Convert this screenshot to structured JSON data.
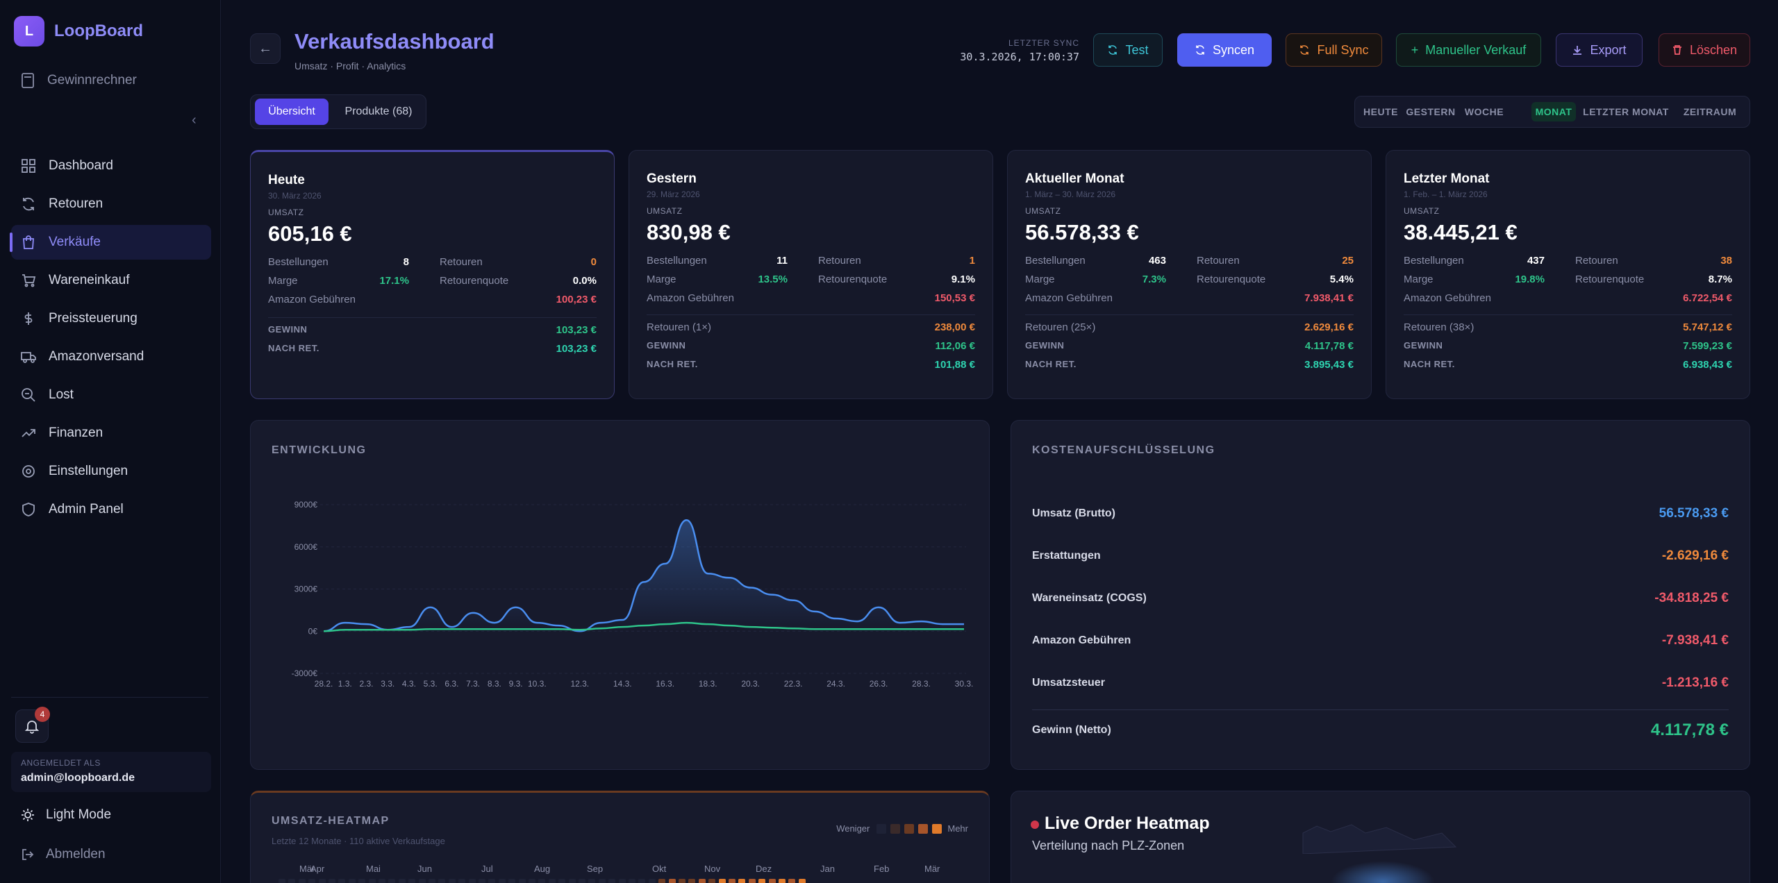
{
  "app": {
    "name": "LoopBoard",
    "logo_letter": "L"
  },
  "sidebar": {
    "top_item": "Gewinnrechner",
    "collapse_icon": "chevron-left-icon",
    "items": [
      {
        "label": "Dashboard",
        "icon": "grid-icon"
      },
      {
        "label": "Retouren",
        "icon": "refresh-icon"
      },
      {
        "label": "Verkäufe",
        "icon": "shopping-bag-icon",
        "active": true
      },
      {
        "label": "Wareneinkauf",
        "icon": "cart-icon"
      },
      {
        "label": "Preissteuerung",
        "icon": "dollar-icon"
      },
      {
        "label": "Amazonversand",
        "icon": "truck-icon"
      },
      {
        "label": "Lost",
        "icon": "search-minus-icon"
      },
      {
        "label": "Finanzen",
        "icon": "trend-icon"
      },
      {
        "label": "Einstellungen",
        "icon": "gear-icon"
      },
      {
        "label": "Admin Panel",
        "icon": "shield-icon"
      }
    ],
    "notification_count": "4",
    "account_label": "ANGEMELDET ALS",
    "account_email": "admin@loopboard.de",
    "light_mode": "Light Mode",
    "logout": "Abmelden"
  },
  "header": {
    "title": "Verkaufsdashboard",
    "subtitle": "Umsatz · Profit · Analytics",
    "sync_label": "LETZTER SYNC",
    "sync_time": "30.3.2026, 17:00:37",
    "buttons": {
      "test": "Test",
      "sync": "Syncen",
      "full_sync": "Full Sync",
      "manual": "Manueller Verkauf",
      "export": "Export",
      "delete": "Löschen"
    }
  },
  "tabs": {
    "overview": "Übersicht",
    "products": "Produkte (68)"
  },
  "period": [
    "HEUTE",
    "GESTERN",
    "WOCHE",
    "MONAT",
    "LETZTER MONAT",
    "ZEITRAUM"
  ],
  "period_active": "MONAT",
  "kpis": [
    {
      "title": "Heute",
      "date": "30. März 2026",
      "umsatz_label": "UMSATZ",
      "umsatz": "605,16 €",
      "bestellungen": "8",
      "retouren": "0",
      "marge": "17.1%",
      "retourenquote": "0.0%",
      "gebuehren": "100,23 €",
      "retouren_line": null,
      "gewinn": "103,23 €",
      "nach_ret": "103,23 €"
    },
    {
      "title": "Gestern",
      "date": "29. März 2026",
      "umsatz_label": "UMSATZ",
      "umsatz": "830,98 €",
      "bestellungen": "11",
      "retouren": "1",
      "marge": "13.5%",
      "retourenquote": "9.1%",
      "gebuehren": "150,53 €",
      "retouren_line": {
        "label": "Retouren (1×)",
        "value": "238,00 €"
      },
      "gewinn": "112,06 €",
      "nach_ret": "101,88 €"
    },
    {
      "title": "Aktueller Monat",
      "date": "1. März – 30. März 2026",
      "umsatz_label": "UMSATZ",
      "umsatz": "56.578,33 €",
      "bestellungen": "463",
      "retouren": "25",
      "marge": "7.3%",
      "retourenquote": "5.4%",
      "gebuehren": "7.938,41 €",
      "retouren_line": {
        "label": "Retouren (25×)",
        "value": "2.629,16 €"
      },
      "gewinn": "4.117,78 €",
      "nach_ret": "3.895,43 €"
    },
    {
      "title": "Letzter Monat",
      "date": "1. Feb. – 1. März 2026",
      "umsatz_label": "UMSATZ",
      "umsatz": "38.445,21 €",
      "bestellungen": "437",
      "retouren": "38",
      "marge": "19.8%",
      "retourenquote": "8.7%",
      "gebuehren": "6.722,54 €",
      "retouren_line": {
        "label": "Retouren (38×)",
        "value": "5.747,12 €"
      },
      "gewinn": "7.599,23 €",
      "nach_ret": "6.938,43 €"
    }
  ],
  "kpi_labels": {
    "bestellungen": "Bestellungen",
    "retouren": "Retouren",
    "marge": "Marge",
    "retourenquote": "Retourenquote",
    "gebuehren": "Amazon Gebühren",
    "gewinn": "GEWINN",
    "nach_ret": "NACH RET."
  },
  "chart_panel_title": "ENTWICKLUNG",
  "chart_data": {
    "type": "line",
    "ylim": [
      -3000,
      9000
    ],
    "yticks": [
      "9000€",
      "6000€",
      "3000€",
      "0€",
      "-3000€"
    ],
    "ytick_values": [
      9000,
      6000,
      3000,
      0,
      -3000
    ],
    "x": [
      "28.2.",
      "1.3.",
      "2.3.",
      "3.3.",
      "4.3.",
      "5.3.",
      "6.3.",
      "7.3.",
      "8.3.",
      "9.3.",
      "10.3.",
      "11.3.",
      "12.3.",
      "13.3.",
      "14.3.",
      "15.3.",
      "16.3.",
      "17.3.",
      "18.3.",
      "19.3.",
      "20.3.",
      "21.3.",
      "22.3.",
      "23.3.",
      "24.3.",
      "25.3.",
      "26.3.",
      "27.3.",
      "28.3.",
      "29.3.",
      "30.3."
    ],
    "x_labels_shown": [
      "28.2.",
      "1.3.",
      "2.3.",
      "3.3.",
      "4.3.",
      "5.3.",
      "6.3.",
      "7.3.",
      "8.3.",
      "9.3.",
      "10.3.",
      "12.3.",
      "14.3.",
      "16.3.",
      "18.3.",
      "20.3.",
      "22.3.",
      "24.3.",
      "26.3.",
      "28.3.",
      "30.3."
    ],
    "series": [
      {
        "color": "#4a8ef0",
        "values": [
          0,
          600,
          500,
          100,
          300,
          1700,
          300,
          1300,
          600,
          1700,
          600,
          400,
          0,
          600,
          800,
          3500,
          4800,
          7900,
          4100,
          3800,
          3100,
          2600,
          2200,
          1400,
          900,
          700,
          1700,
          600,
          700,
          500,
          500
        ]
      },
      {
        "color": "#2ec48a",
        "values": [
          0,
          100,
          100,
          100,
          100,
          150,
          150,
          150,
          150,
          150,
          150,
          150,
          100,
          200,
          300,
          400,
          500,
          600,
          500,
          400,
          300,
          250,
          200,
          150,
          150,
          150,
          150,
          150,
          150,
          150,
          150
        ]
      }
    ]
  },
  "cost": {
    "title": "KOSTENAUFSCHLÜSSELUNG",
    "rows": [
      {
        "label": "Umsatz (Brutto)",
        "value": "56.578,33 €",
        "color": "#4a9af0"
      },
      {
        "label": "Erstattungen",
        "value": "-2.629,16 €",
        "color": "#f08a3c"
      },
      {
        "label": "Wareneinsatz (COGS)",
        "value": "-34.818,25 €",
        "color": "#f05a6a"
      },
      {
        "label": "Amazon Gebühren",
        "value": "-7.938,41 €",
        "color": "#f05a6a"
      },
      {
        "label": "Umsatzsteuer",
        "value": "-1.213,16 €",
        "color": "#f05a6a"
      }
    ],
    "total": {
      "label": "Gewinn (Netto)",
      "value": "4.117,78 €",
      "color": "#2ec48a"
    }
  },
  "heatmap": {
    "title": "UMSATZ-HEATMAP",
    "subtitle": "Letzte 12 Monate · 110 aktive Verkaufstage",
    "legend_less": "Weniger",
    "legend_more": "Mehr",
    "legend_colors": [
      "#1e2236",
      "#3a2a2a",
      "#6a3a22",
      "#a8552a",
      "#e07a2a"
    ],
    "months": [
      "Mär",
      "Apr",
      "Mai",
      "Jun",
      "Jul",
      "Aug",
      "Sep",
      "Okt",
      "Nov",
      "Dez",
      "Jan",
      "Feb",
      "Mär"
    ]
  },
  "map": {
    "title": "Live Order Heatmap",
    "subtitle": "Verteilung nach PLZ-Zonen"
  }
}
